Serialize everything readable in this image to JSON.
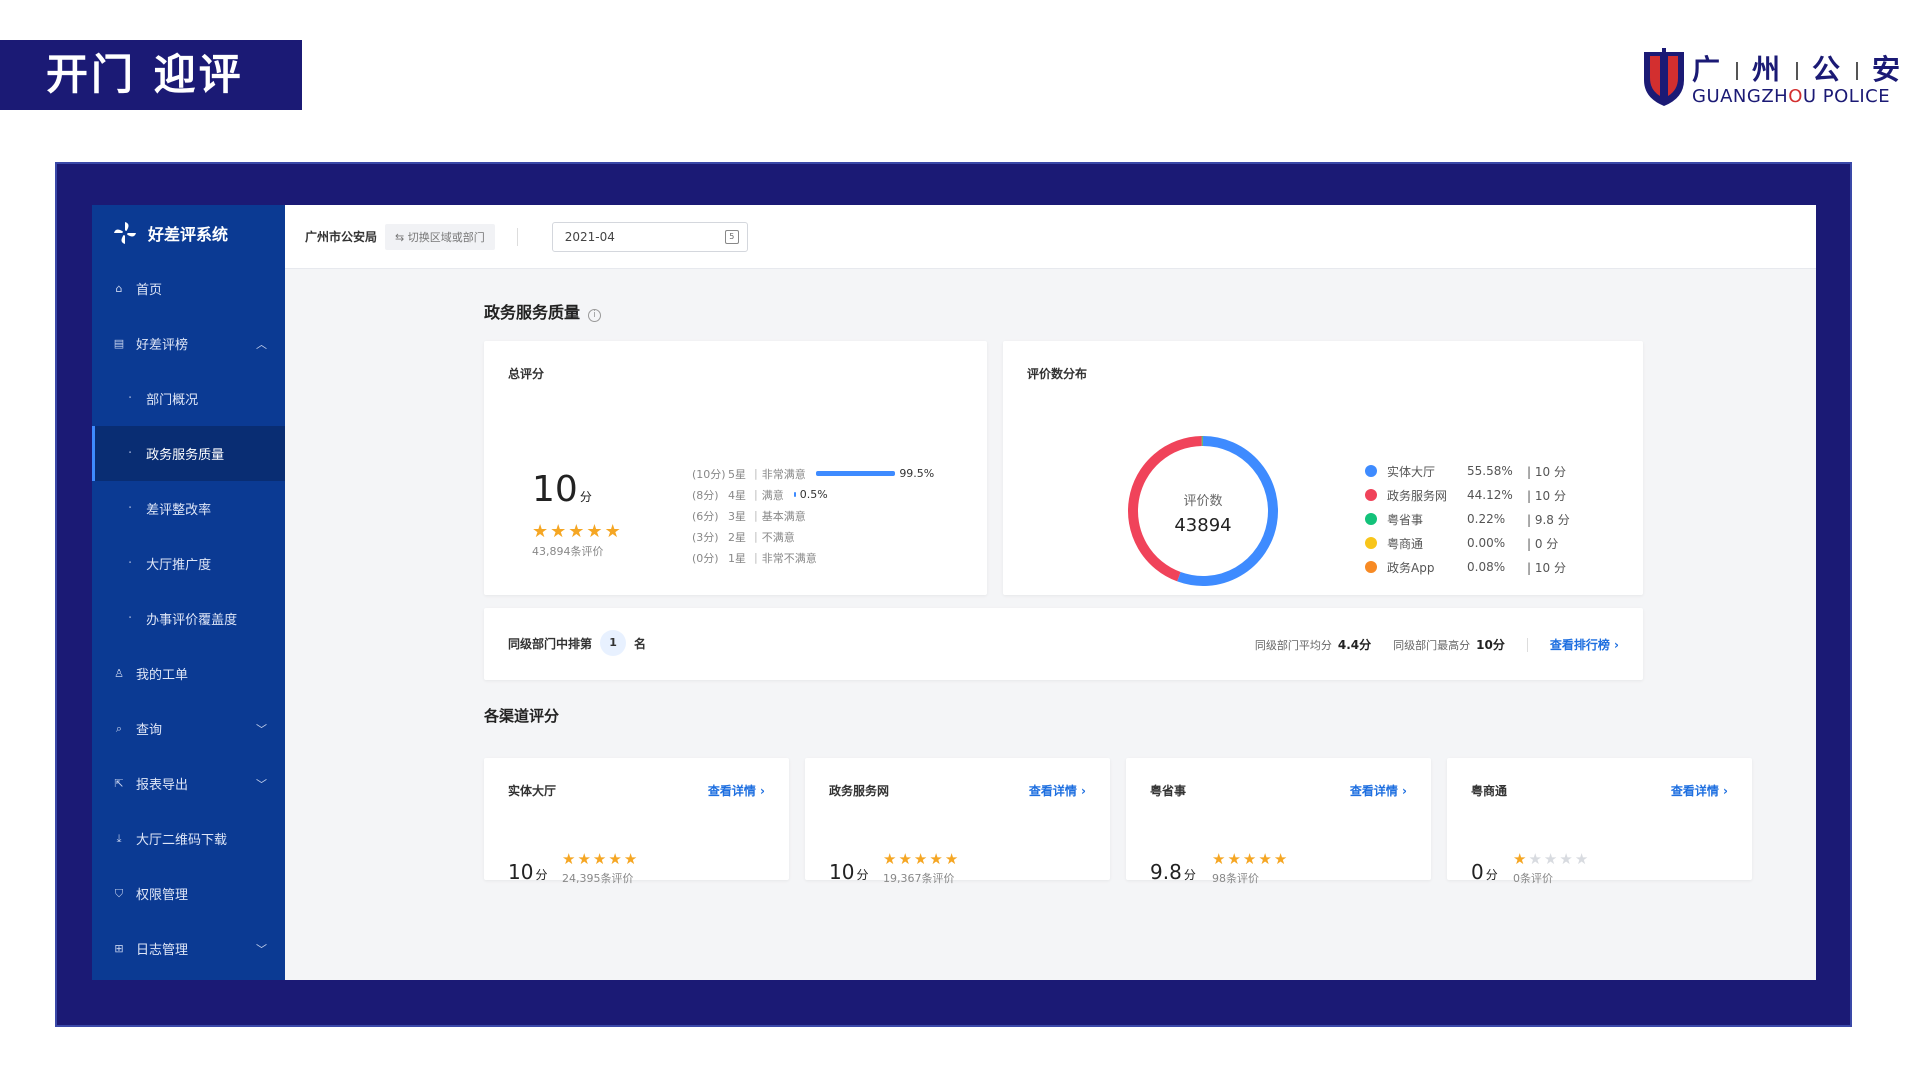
{
  "slide": {
    "title": "开门 迎评",
    "logo": {
      "cn": [
        "广",
        "州",
        "公",
        "安"
      ],
      "en_prefix": "GUANGZH",
      "en_red": "O",
      "en_suffix": "U POLICE"
    }
  },
  "app": {
    "brand": "好差评系统",
    "org": "广州市公安局",
    "switch_label": "⇆ 切换区域或部门",
    "date": "2021-04"
  },
  "sidebar": {
    "home": "首页",
    "rating_list": "好差评榜",
    "sub": [
      "部门概况",
      "政务服务质量",
      "差评整改率",
      "大厅推广度",
      "办事评价覆盖度"
    ],
    "work_orders": "我的工单",
    "query": "查询",
    "report_export": "报表导出",
    "qr_download": "大厅二维码下载",
    "permissions": "权限管理",
    "logs": "日志管理"
  },
  "main": {
    "section_title": "政务服务质量",
    "total": {
      "title": "总评分",
      "score": "10",
      "unit": "分",
      "stars": 5,
      "count": "43,894条评价",
      "distribution": [
        {
          "pts": "(10分)",
          "lvl": "5星",
          "desc": "非常满意",
          "pct": "99.5%",
          "value": 99.5
        },
        {
          "pts": "(8分)",
          "lvl": "4星",
          "desc": "满意",
          "pct": "0.5%",
          "value": 0.5
        },
        {
          "pts": "(6分)",
          "lvl": "3星",
          "desc": "基本满意",
          "pct": "",
          "value": 0
        },
        {
          "pts": "(3分)",
          "lvl": "2星",
          "desc": "不满意",
          "pct": "",
          "value": 0
        },
        {
          "pts": "(0分)",
          "lvl": "1星",
          "desc": "非常不满意",
          "pct": "",
          "value": 0
        }
      ]
    },
    "distribution_card": {
      "title": "评价数分布",
      "center_label": "评价数",
      "center_value": "43894",
      "legend": [
        {
          "name": "实体大厅",
          "pct": "55.58%",
          "score": "| 10 分",
          "color": "#3e8bff",
          "value": 55.58
        },
        {
          "name": "政务服务网",
          "pct": "44.12%",
          "score": "| 10 分",
          "color": "#f0435a",
          "value": 44.12
        },
        {
          "name": "粤省事",
          "pct": "0.22%",
          "score": "| 9.8 分",
          "color": "#13c27a",
          "value": 0.22
        },
        {
          "name": "粤商通",
          "pct": "0.00%",
          "score": "| 0 分",
          "color": "#f8c51a",
          "value": 0
        },
        {
          "name": "政务App",
          "pct": "0.08%",
          "score": "| 10 分",
          "color": "#f78a24",
          "value": 0.08
        }
      ]
    },
    "rank": {
      "prefix": "同级部门中排第",
      "rank": "1",
      "suffix": "名",
      "avg_label": "同级部门平均分",
      "avg_value": "4.4分",
      "max_label": "同级部门最高分",
      "max_value": "10分",
      "link": "查看排行榜"
    },
    "channels_title": "各渠道评分",
    "channels": [
      {
        "name": "实体大厅",
        "link": "查看详情",
        "score": "10",
        "unit": "分",
        "stars": 5,
        "count": "24,395条评价"
      },
      {
        "name": "政务服务网",
        "link": "查看详情",
        "score": "10",
        "unit": "分",
        "stars": 5,
        "count": "19,367条评价"
      },
      {
        "name": "粤省事",
        "link": "查看详情",
        "score": "9.8",
        "unit": "分",
        "stars": 5,
        "count": "98条评价"
      },
      {
        "name": "粤商通",
        "link": "查看详情",
        "score": "0",
        "unit": "分",
        "stars": 1,
        "count": "0条评价"
      }
    ]
  }
}
